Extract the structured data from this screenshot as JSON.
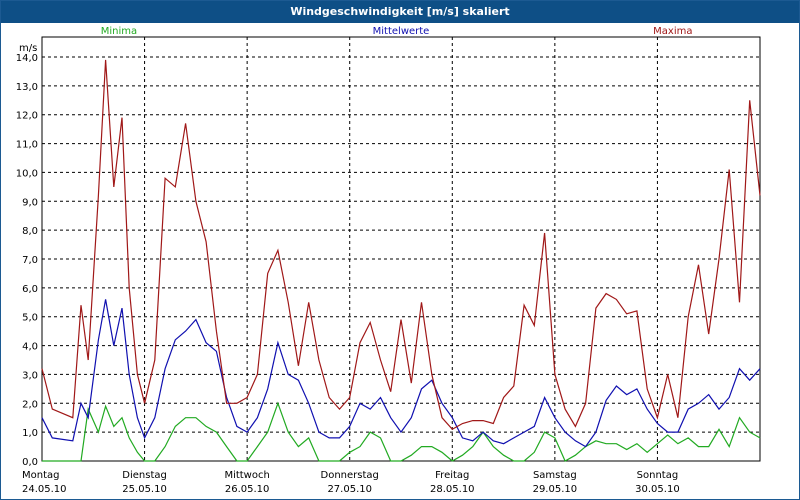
{
  "window": {
    "title": "Windgeschwindigkeit [m/s] skaliert"
  },
  "colors": {
    "min": "#22aa22",
    "avg": "#1010b0",
    "max": "#a01818",
    "frame": "#0e4f86"
  },
  "chart_data": {
    "type": "line",
    "title": "Windgeschwindigkeit [m/s] skaliert",
    "ylabel": "m/s",
    "ylim": [
      0,
      14
    ],
    "yticks": [
      "0,0",
      "1,0",
      "2,0",
      "3,0",
      "4,0",
      "5,0",
      "6,0",
      "7,0",
      "8,0",
      "9,0",
      "10,0",
      "11,0",
      "12,0",
      "13,0",
      "14,0"
    ],
    "xlim": [
      0,
      7
    ],
    "days": [
      {
        "weekday": "Montag",
        "date": "24.05.10"
      },
      {
        "weekday": "Dienstag",
        "date": "25.05.10"
      },
      {
        "weekday": "Mittwoch",
        "date": "26.05.10"
      },
      {
        "weekday": "Donnerstag",
        "date": "27.05.10"
      },
      {
        "weekday": "Freitag",
        "date": "28.05.10"
      },
      {
        "weekday": "Samstag",
        "date": "29.05.10"
      },
      {
        "weekday": "Sonntag",
        "date": "30.05.10"
      }
    ],
    "series": [
      {
        "name": "Minima",
        "color": "#22aa22",
        "x": [
          0.0,
          0.1,
          0.3,
          0.38,
          0.45,
          0.55,
          0.62,
          0.7,
          0.78,
          0.85,
          0.93,
          1.0,
          1.1,
          1.2,
          1.3,
          1.4,
          1.5,
          1.6,
          1.7,
          1.8,
          1.9,
          2.0,
          2.1,
          2.2,
          2.3,
          2.4,
          2.5,
          2.6,
          2.7,
          2.8,
          2.9,
          3.0,
          3.1,
          3.2,
          3.3,
          3.4,
          3.5,
          3.6,
          3.7,
          3.8,
          3.9,
          4.0,
          4.1,
          4.2,
          4.3,
          4.4,
          4.5,
          4.6,
          4.7,
          4.8,
          4.9,
          5.0,
          5.1,
          5.2,
          5.3,
          5.4,
          5.5,
          5.6,
          5.7,
          5.8,
          5.9,
          6.0,
          6.1,
          6.2,
          6.3,
          6.4,
          6.5,
          6.6,
          6.7,
          6.8,
          6.9,
          7.0
        ],
        "values": [
          0.0,
          0.0,
          0.0,
          0.0,
          1.8,
          1.0,
          1.9,
          1.2,
          1.5,
          0.8,
          0.3,
          0.0,
          0.0,
          0.5,
          1.2,
          1.5,
          1.5,
          1.2,
          1.0,
          0.5,
          0.0,
          0.0,
          0.5,
          1.0,
          2.0,
          1.0,
          0.5,
          0.8,
          0.0,
          0.0,
          0.0,
          0.3,
          0.5,
          1.0,
          0.8,
          0.0,
          0.0,
          0.2,
          0.5,
          0.5,
          0.3,
          0.0,
          0.2,
          0.5,
          1.0,
          0.5,
          0.2,
          0.0,
          0.0,
          0.3,
          1.0,
          0.8,
          0.0,
          0.2,
          0.5,
          0.7,
          0.6,
          0.6,
          0.4,
          0.6,
          0.3,
          0.6,
          0.9,
          0.6,
          0.8,
          0.5,
          0.5,
          1.1,
          0.5,
          1.5,
          1.0,
          0.8
        ]
      },
      {
        "name": "Mittelwerte",
        "color": "#1010b0",
        "x": [
          0.0,
          0.1,
          0.3,
          0.38,
          0.45,
          0.55,
          0.62,
          0.7,
          0.78,
          0.85,
          0.93,
          1.0,
          1.1,
          1.2,
          1.3,
          1.4,
          1.5,
          1.6,
          1.7,
          1.8,
          1.9,
          2.0,
          2.1,
          2.2,
          2.3,
          2.4,
          2.5,
          2.6,
          2.7,
          2.8,
          2.9,
          3.0,
          3.1,
          3.2,
          3.3,
          3.4,
          3.5,
          3.6,
          3.7,
          3.8,
          3.9,
          4.0,
          4.1,
          4.2,
          4.3,
          4.4,
          4.5,
          4.6,
          4.7,
          4.8,
          4.9,
          5.0,
          5.1,
          5.2,
          5.3,
          5.4,
          5.5,
          5.6,
          5.7,
          5.8,
          5.9,
          6.0,
          6.1,
          6.2,
          6.3,
          6.4,
          6.5,
          6.6,
          6.7,
          6.8,
          6.9,
          7.0
        ],
        "values": [
          1.5,
          0.8,
          0.7,
          2.0,
          1.5,
          4.2,
          5.6,
          4.0,
          5.3,
          3.0,
          1.5,
          0.8,
          1.5,
          3.2,
          4.2,
          4.5,
          4.9,
          4.1,
          3.8,
          2.2,
          1.2,
          1.0,
          1.5,
          2.5,
          4.1,
          3.0,
          2.8,
          2.0,
          1.0,
          0.8,
          0.8,
          1.2,
          2.0,
          1.8,
          2.2,
          1.5,
          1.0,
          1.5,
          2.5,
          2.8,
          2.0,
          1.5,
          0.8,
          0.7,
          1.0,
          0.7,
          0.6,
          0.8,
          1.0,
          1.2,
          2.2,
          1.5,
          1.0,
          0.7,
          0.5,
          1.0,
          2.1,
          2.6,
          2.3,
          2.5,
          1.8,
          1.3,
          1.0,
          1.0,
          1.8,
          2.0,
          2.3,
          1.8,
          2.2,
          3.2,
          2.8,
          3.2
        ]
      },
      {
        "name": "Maxima",
        "color": "#a01818",
        "x": [
          0.0,
          0.1,
          0.3,
          0.38,
          0.45,
          0.55,
          0.62,
          0.7,
          0.78,
          0.85,
          0.93,
          1.0,
          1.1,
          1.2,
          1.3,
          1.4,
          1.5,
          1.6,
          1.7,
          1.8,
          1.9,
          2.0,
          2.1,
          2.2,
          2.3,
          2.4,
          2.5,
          2.6,
          2.7,
          2.8,
          2.9,
          3.0,
          3.1,
          3.2,
          3.3,
          3.4,
          3.5,
          3.6,
          3.7,
          3.8,
          3.9,
          4.0,
          4.1,
          4.2,
          4.3,
          4.4,
          4.5,
          4.6,
          4.7,
          4.8,
          4.9,
          5.0,
          5.1,
          5.2,
          5.3,
          5.4,
          5.5,
          5.6,
          5.7,
          5.8,
          5.9,
          6.0,
          6.1,
          6.2,
          6.3,
          6.4,
          6.5,
          6.6,
          6.7,
          6.8,
          6.9,
          7.0
        ],
        "values": [
          3.2,
          1.8,
          1.5,
          5.4,
          3.5,
          9.2,
          13.9,
          9.5,
          11.9,
          6.0,
          3.0,
          2.0,
          3.5,
          9.8,
          9.5,
          11.7,
          9.0,
          7.6,
          4.5,
          2.0,
          2.0,
          2.2,
          3.0,
          6.5,
          7.3,
          5.5,
          3.3,
          5.5,
          3.5,
          2.2,
          1.8,
          2.2,
          4.1,
          4.8,
          3.5,
          2.4,
          4.9,
          2.7,
          5.5,
          3.0,
          1.5,
          1.1,
          1.3,
          1.4,
          1.4,
          1.3,
          2.2,
          2.6,
          5.4,
          4.7,
          7.9,
          3.0,
          1.8,
          1.2,
          2.0,
          5.3,
          5.8,
          5.6,
          5.1,
          5.2,
          2.5,
          1.5,
          3.0,
          1.5,
          5.0,
          6.8,
          4.4,
          7.0,
          10.1,
          5.5,
          12.5,
          9.2
        ]
      }
    ]
  }
}
